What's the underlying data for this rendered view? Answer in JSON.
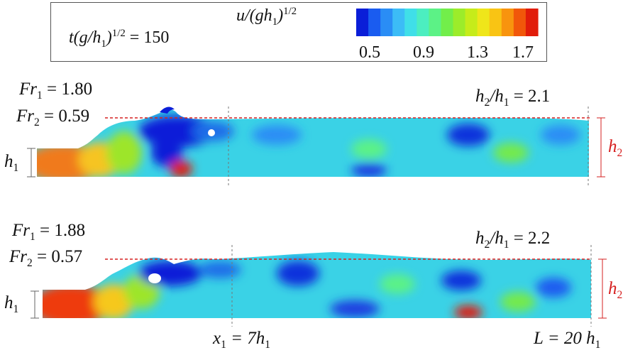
{
  "legend": {
    "time_label_main": "t(g/h",
    "time_label_sub": "1",
    "time_label_close": ")",
    "time_label_sup": "1/2",
    "time_label_value": " = 150",
    "velocity_label_main": "u/(gh",
    "velocity_label_sub": "1",
    "velocity_label_close": ")",
    "velocity_label_sup": "1/2",
    "colorbar_ticks": [
      "0.5",
      "0.9",
      "1.3",
      "1.7"
    ],
    "colorbar_colors": [
      "#0a1ed8",
      "#1a5cf0",
      "#2a8df5",
      "#3cbcf6",
      "#40dfe8",
      "#4ceec0",
      "#5cf286",
      "#72ee4a",
      "#9cec2a",
      "#c6ec1a",
      "#efe61a",
      "#f9c414",
      "#f8940e",
      "#f1570a",
      "#e11c0a"
    ]
  },
  "panels": [
    {
      "fr1_label": "Fr",
      "fr1_sub": "1",
      "fr1_value": " = 1.80",
      "fr2_label": "Fr",
      "fr2_sub": "2",
      "fr2_value": " = 0.59",
      "ratio_h": "h",
      "ratio_sub_a": "2",
      "ratio_mid": "/h",
      "ratio_sub_b": "1",
      "ratio_value": " = 2.1",
      "h1_label": "h",
      "h1_sub": "1",
      "h2_label": "h",
      "h2_sub": "2"
    },
    {
      "fr1_label": "Fr",
      "fr1_sub": "1",
      "fr1_value": " = 1.88",
      "fr2_label": "Fr",
      "fr2_sub": "2",
      "fr2_value": " = 0.57",
      "ratio_h": "h",
      "ratio_sub_a": "2",
      "ratio_mid": "/h",
      "ratio_sub_b": "1",
      "ratio_value": " = 2.2",
      "h1_label": "h",
      "h1_sub": "1",
      "h2_label": "h",
      "h2_sub": "2"
    }
  ],
  "axis": {
    "x1_label": "x",
    "x1_sub": "1",
    "x1_value": " = 7h",
    "x1_sub2": "1",
    "L_label": "L = 20 h",
    "L_sub": "1"
  },
  "colors": {
    "water_base": "#3ad2e6",
    "reference_line": "#d62020",
    "inlet": "#f07a1a"
  }
}
